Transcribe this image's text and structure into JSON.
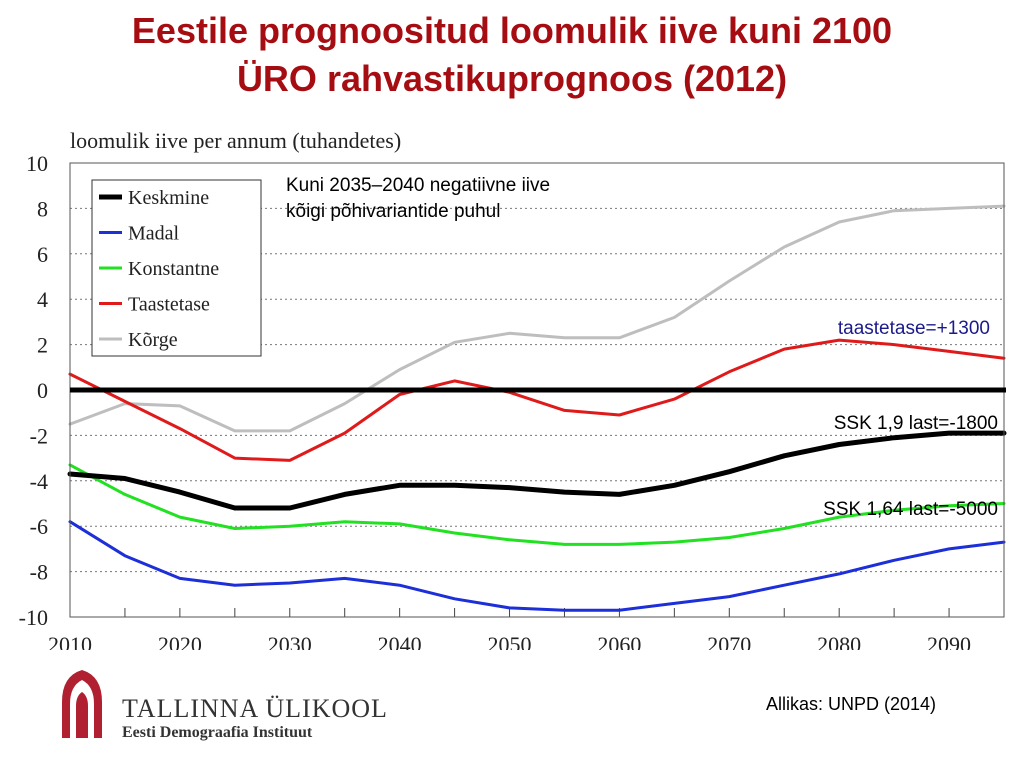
{
  "slide": {
    "title_line1": "Eestile prognoositud loomulik iive kuni 2100",
    "title_line2": "ÜRO rahvastikuprognoos (2012)",
    "source": "Allikas: UNPD (2014)",
    "institution": {
      "name": "TALLINNA ÜLIKOOL",
      "sub": "Eesti Demograafia Instituut"
    }
  },
  "chart_data": {
    "type": "line",
    "ylabel": "loomulik iive per annum (tuhandetes)",
    "xlim": [
      2010,
      2095
    ],
    "ylim": [
      -10,
      10
    ],
    "x_ticks": [
      2010,
      2020,
      2030,
      2040,
      2050,
      2060,
      2070,
      2080,
      2090
    ],
    "y_ticks": [
      10,
      8,
      6,
      4,
      2,
      0,
      -2,
      -4,
      -6,
      -8,
      -10
    ],
    "grid": "horizontal-dotted",
    "legend_position": "top-left",
    "x": [
      2010,
      2015,
      2020,
      2025,
      2030,
      2035,
      2040,
      2045,
      2050,
      2055,
      2060,
      2065,
      2070,
      2075,
      2080,
      2085,
      2090,
      2095
    ],
    "series": [
      {
        "name": "Keskmine",
        "color": "#000000",
        "width": 5,
        "values": [
          -3.7,
          -3.9,
          -4.5,
          -5.2,
          -5.2,
          -4.6,
          -4.2,
          -4.2,
          -4.3,
          -4.5,
          -4.6,
          -4.2,
          -3.6,
          -2.9,
          -2.4,
          -2.1,
          -1.9,
          -1.9
        ]
      },
      {
        "name": "Madal",
        "color": "#1c2fd8",
        "width": 3,
        "values": [
          -5.8,
          -7.3,
          -8.3,
          -8.6,
          -8.5,
          -8.3,
          -8.6,
          -9.2,
          -9.6,
          -9.7,
          -9.7,
          -9.4,
          -9.1,
          -8.6,
          -8.1,
          -7.5,
          -7.0,
          -6.7
        ]
      },
      {
        "name": "Konstantne",
        "color": "#22e022",
        "width": 3,
        "values": [
          -3.3,
          -4.6,
          -5.6,
          -6.1,
          -6.0,
          -5.8,
          -5.9,
          -6.3,
          -6.6,
          -6.8,
          -6.8,
          -6.7,
          -6.5,
          -6.1,
          -5.6,
          -5.3,
          -5.1,
          -5.0
        ]
      },
      {
        "name": "Taastetase",
        "color": "#e01a1a",
        "width": 3,
        "values": [
          0.7,
          -0.5,
          -1.7,
          -3.0,
          -3.1,
          -1.9,
          -0.2,
          0.4,
          -0.1,
          -0.9,
          -1.1,
          -0.4,
          0.8,
          1.8,
          2.2,
          2.0,
          1.7,
          1.4
        ]
      },
      {
        "name": "Kõrge",
        "color": "#bebebe",
        "width": 3,
        "values": [
          -1.5,
          -0.6,
          -0.7,
          -1.8,
          -1.8,
          -0.6,
          0.9,
          2.1,
          2.5,
          2.3,
          2.3,
          3.2,
          4.8,
          6.3,
          7.4,
          7.9,
          8.0,
          8.1
        ]
      }
    ],
    "reference_line": {
      "y": 0,
      "color": "#000000"
    },
    "annotations": [
      {
        "text_lines": [
          "Kuni 2035–2040 negatiivne iive",
          "kõigi põhivariantide puhul"
        ],
        "color": "#000000"
      },
      {
        "text": "taastetase=+1300",
        "color": "#1a1a8c"
      },
      {
        "text": "SSK 1,9 last=-1800",
        "color": "#000000"
      },
      {
        "text": "SSK 1,64 last=-5000",
        "color": "#000000"
      }
    ]
  }
}
